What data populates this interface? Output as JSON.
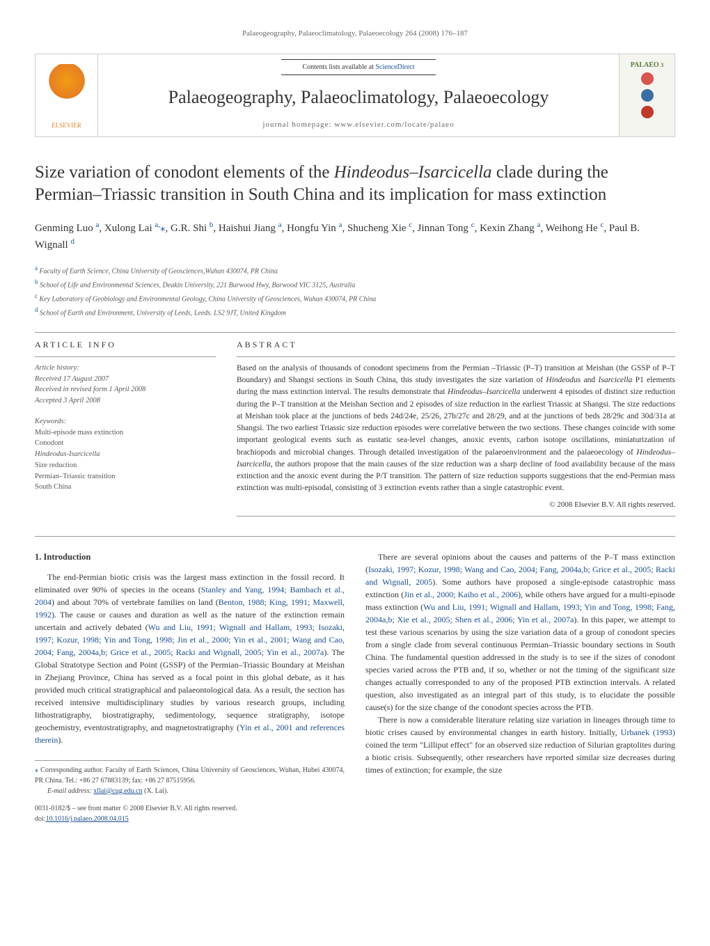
{
  "pageHeader": "Palaeogeography, Palaeoclimatology, Palaeoecology 264 (2008) 176–187",
  "banner": {
    "contentsPrefix": "Contents lists available at ",
    "contentsLink": "ScienceDirect",
    "journalName": "Palaeogeography, Palaeoclimatology, Palaeoecology",
    "homepageLabel": "journal homepage: www.elsevier.com/locate/palaeo",
    "elsevierLabel": "ELSEVIER",
    "coverLabel": "PALAEO",
    "coverNum": "3",
    "globeColors": [
      "#d9534f",
      "#3a6ea5",
      "#c0392b"
    ]
  },
  "title": {
    "pre": "Size variation of conodont elements of the ",
    "italic": "Hindeodus–Isarcicella",
    "post": " clade during the Permian–Triassic transition in South China and its implication for mass extinction"
  },
  "authors": [
    {
      "name": "Genming Luo",
      "aff": "a"
    },
    {
      "name": "Xulong Lai",
      "aff": "a,",
      "corr": true
    },
    {
      "name": "G.R. Shi",
      "aff": "b"
    },
    {
      "name": "Haishui Jiang",
      "aff": "a"
    },
    {
      "name": "Hongfu Yin",
      "aff": "a"
    },
    {
      "name": "Shucheng Xie",
      "aff": "c"
    },
    {
      "name": "Jinnan Tong",
      "aff": "c"
    },
    {
      "name": "Kexin Zhang",
      "aff": "a"
    },
    {
      "name": "Weihong He",
      "aff": "c"
    },
    {
      "name": "Paul B. Wignall",
      "aff": "d"
    }
  ],
  "affiliations": [
    {
      "sup": "a",
      "text": "Faculty of Earth Science, China University of Geosciences,Wuhan 430074, PR China"
    },
    {
      "sup": "b",
      "text": "School of Life and Environmental Sciences, Deakin University, 221 Burwood Hwy, Burwood VIC 3125, Australia"
    },
    {
      "sup": "c",
      "text": "Key Laboratory of Geobiology and Environmental Geology, China University of Geosciences, Wuhan 430074, PR China"
    },
    {
      "sup": "d",
      "text": "School of Earth and Environment, University of Leeds, Leeds. LS2 9JT, United Kingdom"
    }
  ],
  "articleInfo": {
    "heading": "ARTICLE INFO",
    "historyLabel": "Article history:",
    "received": "Received 17 August 2007",
    "revised": "Received in revised form 1 April 2008",
    "accepted": "Accepted 3 April 2008",
    "keywordsLabel": "Keywords:",
    "keywords": [
      "Multi-episode mass extinction",
      "Conodont",
      "Hindeodus-Isarcicella",
      "Size reduction",
      "Permian–Triassic transition",
      "South China"
    ]
  },
  "abstract": {
    "heading": "ABSTRACT",
    "text": "Based on the analysis of thousands of conodont specimens from the Permian –Triassic (P–T) transition at Meishan (the GSSP of P–T Boundary) and Shangsi sections in South China, this study investigates the size variation of Hindeodus and Isarcicella P1 elements during the mass extinction interval. The results demonstrate that Hindeodus–Isarcicella underwent 4 episodes of distinct size reduction during the P–T transition at the Meishan Section and 2 episodes of size reduction in the earliest Triassic at Shangsi. The size reductions at Meishan took place at the junctions of beds 24d/24e, 25/26, 27b/27c and 28/29, and at the junctions of beds 28/29c and 30d/31a at Shangsi. The two earliest Triassic size reduction episodes were correlative between the two sections. These changes coincide with some important geological events such as eustatic sea-level changes, anoxic events, carbon isotope oscillations, miniaturization of brachiopods and microbial changes. Through detailed investigation of the palaeoenvironment and the palaeoecology of Hindeodus–Isarcicella, the authors propose that the main causes of the size reduction was a sharp decline of food availability because of the mass extinction and the anoxic event during the P/T transition. The pattern of size reduction supports suggestions that the end-Permian mass extinction was multi-episodal, consisting of 3 extinction events rather than a single catastrophic event.",
    "copyright": "© 2008 Elsevier B.V. All rights reserved."
  },
  "body": {
    "introHeading": "1. Introduction",
    "col1p1": "The end-Permian biotic crisis was the largest mass extinction in the fossil record. It eliminated over 90% of species in the oceans (Stanley and Yang, 1994; Bambach et al., 2004) and about 70% of vertebrate families on land (Benton, 1988; King, 1991; Maxwell, 1992). The cause or causes and duration as well as the nature of the extinction remain uncertain and actively debated (Wu and Liu, 1991; Wignall and Hallam, 1993; Isozaki, 1997; Kozur, 1998; Yin and Tong, 1998; Jin et al., 2000; Yin et al., 2001; Wang and Cao, 2004; Fang, 2004a,b; Grice et al., 2005; Racki and Wignall, 2005; Yin et al., 2007a). The Global Stratotype Section and Point (GSSP) of the Permian–Triassic Boundary at Meishan in Zhejiang Province, China has served as a focal point in this global debate, as it has provided much critical stratigraphical and palaeontological data. As a result, the section has received intensive multidisciplinary studies by various research groups, including lithostratigraphy, biostratigraphy, sedimentology, sequence stratigraphy, isotope geochemistry, eventostratigraphy, and magnetostratigraphy (Yin et al., 2001 and references therein).",
    "col2p1": "There are several opinions about the causes and patterns of the P–T mass extinction (Isozaki, 1997; Kozur, 1998; Wang and Cao, 2004; Fang, 2004a,b; Grice et al., 2005; Racki and Wignall, 2005). Some authors have proposed a single-episode catastrophic mass extinction (Jin et al., 2000; Kaiho et al., 2006), while others have argued for a multi-episode mass extinction (Wu and Liu, 1991; Wignall and Hallam, 1993; Yin and Tong, 1998; Fang, 2004a,b; Xie et al., 2005; Shen et al., 2006; Yin et al., 2007a). In this paper, we attempt to test these various scenarios by using the size variation data of a group of conodont species from a single clade from several continuous Permian–Triassic boundary sections in South China. The fundamental question addressed in the study is to see if the sizes of conodont species varied across the PTB and, if so, whether or not the timing of the significant size changes actually corresponded to any of the proposed PTB extinction intervals. A related question, also investigated as an integral part of this study, is to elucidate the possible cause(s) for the size change of the conodont species across the PTB.",
    "col2p2": "There is now a considerable literature relating size variation in lineages through time to biotic crises caused by environmental changes in earth history. Initially, Urbanek (1993) coined the term \"Lilliput effect\" for an observed size reduction of Silurian graptolites during a biotic crisis. Subsequently, other researchers have reported similar size decreases during times of extinction; for example, the size"
  },
  "footnotes": {
    "corr": "Corresponding author. Faculty of Earth Sciences, China University of Geosciences, Wuhan, Hubei 430074, PR China. Tel.: +86 27 67883139; fax: +86 27 87515956.",
    "emailLabel": "E-mail address: ",
    "email": "xllai@cug.edu.cn",
    "emailSuffix": " (X. Lai).",
    "frontMatter": "0031-0182/$ – see front matter © 2008 Elsevier B.V. All rights reserved.",
    "doiLabel": "doi:",
    "doi": "10.1016/j.palaeo.2008.04.015"
  },
  "colors": {
    "link": "#1a4d8f",
    "text": "#333333",
    "muted": "#666666"
  }
}
